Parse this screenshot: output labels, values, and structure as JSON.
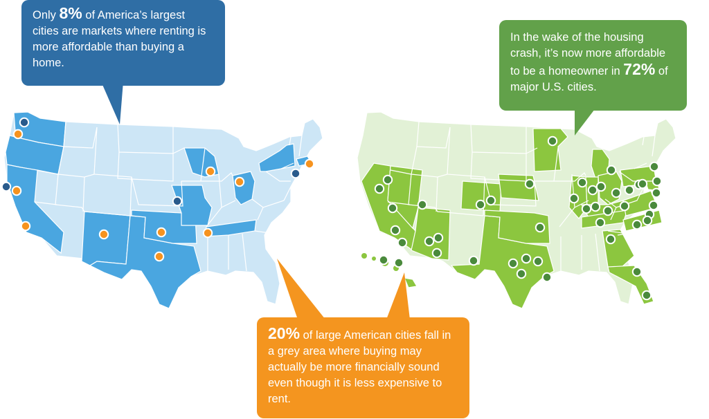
{
  "colors": {
    "blue_bubble": "#2f6ea5",
    "green_bubble": "#62a14a",
    "orange_bubble": "#f4951f",
    "left_base_state": "#cde6f6",
    "left_highlight_state": "#4aa6e0",
    "right_base_state": "#e2f1d6",
    "right_highlight_state": "#8cc63f",
    "orange_marker": "#f6931f",
    "dark_blue_marker": "#2a5b8c",
    "green_marker": "#4a8a3c"
  },
  "callouts": {
    "blue": {
      "prefix": "Only ",
      "percent": "8%",
      "suffix": " of America’s largest cities are markets where renting is more affordable than buying a home."
    },
    "green": {
      "prefix": "In the wake of the housing crash, it’s now more affordable to be a homeowner in ",
      "percent": "72%",
      "suffix": " of major U.S. cities."
    },
    "orange": {
      "percent": "20%",
      "suffix": " of large American cities fall in a grey area where buying may actually be more financially sound even though it is less expensive to rent."
    }
  },
  "maps": {
    "left": {
      "highlighted_states": [
        "Washington",
        "Oregon",
        "California",
        "New Mexico",
        "Texas",
        "Oklahoma",
        "Missouri",
        "Tennessee",
        "Wisconsin",
        "Ohio",
        "New York",
        "Massachusetts"
      ],
      "orange_marker_count": 11,
      "dark_blue_marker_count": 4
    },
    "right": {
      "highlighted_states": [
        "California",
        "Nevada",
        "Arizona",
        "Colorado",
        "Nebraska",
        "Texas",
        "Oklahoma",
        "Minnesota",
        "Michigan",
        "Illinois",
        "Indiana",
        "Ohio",
        "Pennsylvania",
        "Kentucky",
        "Tennessee",
        "North Carolina",
        "Virginia",
        "Maryland",
        "Georgia",
        "Florida",
        "Hawaii"
      ],
      "green_marker_count": 46
    }
  }
}
